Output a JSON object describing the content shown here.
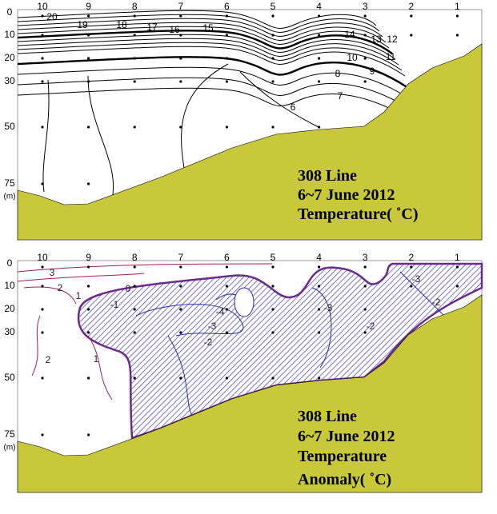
{
  "stations": [
    "10",
    "9",
    "8",
    "7",
    "6",
    "5",
    "4",
    "3",
    "2",
    "1"
  ],
  "depths": [
    "0",
    "10",
    "20",
    "30",
    "50",
    "75",
    "(m)"
  ],
  "panels": [
    {
      "title_lines": [
        "308 Line",
        "6~7 June 2012",
        "Temperature( ˚C)"
      ],
      "contour_labels": [
        "20",
        "19",
        "18",
        "17",
        "16",
        "15",
        "14",
        "13",
        "12",
        "11",
        "10",
        "9",
        "8",
        "7",
        "6"
      ]
    },
    {
      "title_lines": [
        "308 Line",
        "6~7 June 2012",
        "Temperature",
        "Anomaly( ˚C)"
      ],
      "contour_labels": [
        "3",
        "2",
        "1",
        "0",
        "-1",
        "-4",
        "-3",
        "-2",
        "-3",
        "-3",
        "-2",
        "-2",
        "2",
        "1"
      ]
    }
  ]
}
